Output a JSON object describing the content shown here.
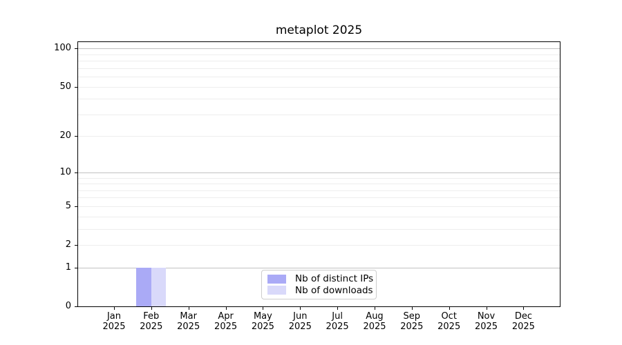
{
  "title": "metaplot 2025",
  "colors": {
    "distinct_ips_bar": "#aaaaf6",
    "downloads_bar": "#d9d9fa",
    "grid_major": "#c0c0c0",
    "grid_minor": "#ededed",
    "axis_line": "#000000",
    "legend_border": "#cccccc",
    "background": "#ffffff"
  },
  "legend": {
    "items": [
      {
        "label": "Nb of distinct IPs",
        "color_key": "distinct_ips_bar"
      },
      {
        "label": "Nb of downloads",
        "color_key": "downloads_bar"
      }
    ]
  },
  "chart_data": {
    "type": "bar",
    "title": "metaplot 2025",
    "categories": [
      "Jan 2025",
      "Feb 2025",
      "Mar 2025",
      "Apr 2025",
      "May 2025",
      "Jun 2025",
      "Jul 2025",
      "Aug 2025",
      "Sep 2025",
      "Oct 2025",
      "Nov 2025",
      "Dec 2025"
    ],
    "series": [
      {
        "name": "Nb of distinct IPs",
        "color_key": "distinct_ips_bar",
        "values": [
          0,
          1,
          0,
          0,
          0,
          0,
          0,
          0,
          0,
          0,
          0,
          0
        ]
      },
      {
        "name": "Nb of downloads",
        "color_key": "downloads_bar",
        "values": [
          0,
          1,
          0,
          0,
          0,
          0,
          0,
          0,
          0,
          0,
          0,
          0
        ]
      }
    ],
    "xlabel": "",
    "ylabel": "",
    "yscale": "log1p",
    "ylim": [
      0,
      112
    ],
    "y_ticks": [
      0,
      1,
      2,
      5,
      10,
      20,
      50,
      100
    ],
    "y_major_gridlines": [
      1,
      10,
      100
    ],
    "y_minor_gridlines": [
      2,
      3,
      4,
      5,
      6,
      7,
      8,
      9,
      20,
      30,
      40,
      50,
      60,
      70,
      80,
      90
    ],
    "grid": true,
    "legend_position": "lower center"
  }
}
